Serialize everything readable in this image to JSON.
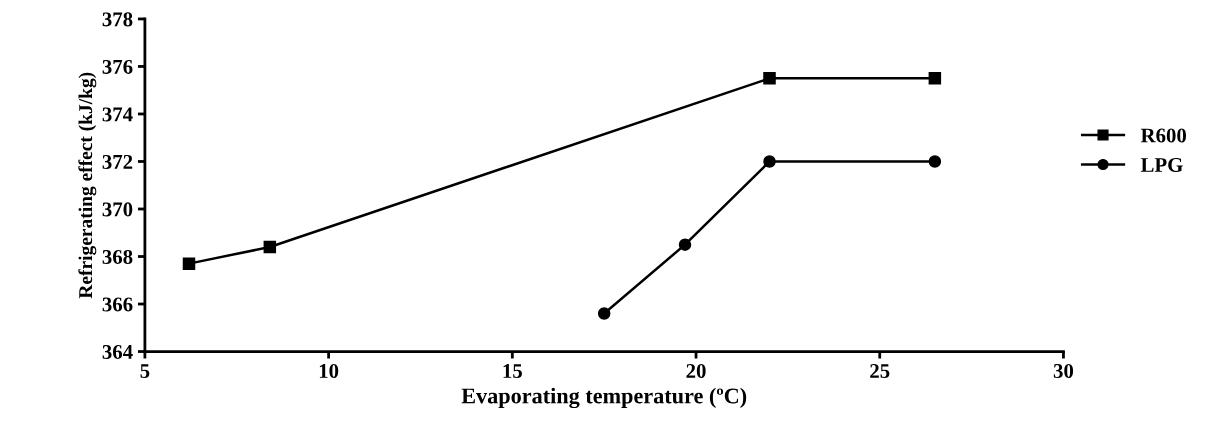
{
  "chart_data": {
    "type": "line",
    "xlabel": "Evaporating temperature (ºC)",
    "ylabel": "Refrigerating effect (kJ/kg)",
    "xlim": [
      5,
      30
    ],
    "xticks": [
      5,
      10,
      15,
      20,
      25,
      30
    ],
    "ylim": [
      364,
      378
    ],
    "yticks": [
      364,
      366,
      368,
      370,
      372,
      374,
      376,
      378
    ],
    "grid": false,
    "legend": "right",
    "line_style": "solid",
    "series": [
      {
        "name": "R600",
        "color": "#000000",
        "marker": "square",
        "x": [
          6.2,
          8.4,
          22.0,
          26.5
        ],
        "values": [
          367.7,
          368.4,
          375.5,
          375.5
        ]
      },
      {
        "name": "LPG",
        "color": "#000000",
        "marker": "circle",
        "x": [
          17.5,
          19.7,
          22.0,
          26.5
        ],
        "values": [
          365.6,
          368.5,
          372.0,
          372.0
        ]
      }
    ]
  }
}
